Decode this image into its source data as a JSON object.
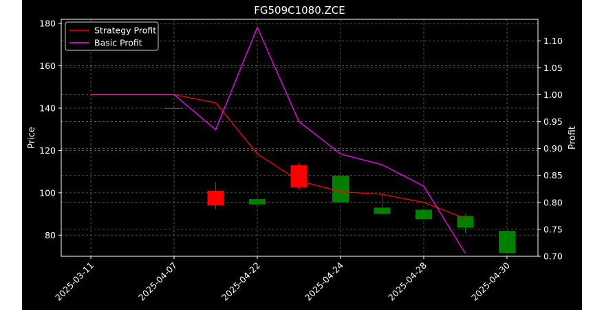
{
  "chart_data": {
    "type": "candlestick",
    "title": "FG509C1080.ZCE",
    "ylabel_left": "Price",
    "ylabel_right": "Profit",
    "ylim_left": [
      70,
      182
    ],
    "ylim_right": [
      0.7,
      1.14
    ],
    "yticks_left": [
      80,
      100,
      120,
      140,
      160,
      180
    ],
    "yticks_right": [
      0.7,
      0.75,
      0.8,
      0.85,
      0.9,
      0.95,
      1.0,
      1.05,
      1.1
    ],
    "ytick_labels_right": [
      "0.70",
      "0.75",
      "0.80",
      "0.85",
      "0.90",
      "0.95",
      "1.00",
      "1.05",
      "1.10"
    ],
    "x_tick_labels": [
      "2025-03-11",
      "2025-04-07",
      "2025-04-22",
      "2025-04-24",
      "2025-04-28",
      "2025-04-30"
    ],
    "grid": true,
    "legend_position": "upper-left",
    "candles": [
      {
        "open": 140,
        "close": 140,
        "high": 140,
        "low": 140,
        "color": "#ff0000"
      },
      {
        "open": 94,
        "close": 101,
        "high": 105,
        "low": 92,
        "color": "#ff0000"
      },
      {
        "open": 97,
        "close": 94.5,
        "high": 98,
        "low": 94,
        "color": "#008000"
      },
      {
        "open": 102.5,
        "close": 113,
        "high": 114,
        "low": 101.5,
        "color": "#ff0000"
      },
      {
        "open": 108,
        "close": 95.5,
        "high": 108.5,
        "low": 95,
        "color": "#008000"
      },
      {
        "open": 93,
        "close": 90,
        "high": 100,
        "low": 89.5,
        "color": "#008000"
      },
      {
        "open": 92,
        "close": 87.5,
        "high": 92.5,
        "low": 87,
        "color": "#008000"
      },
      {
        "open": 89,
        "close": 83.5,
        "high": 90,
        "low": 81,
        "color": "#008000"
      },
      {
        "open": 82,
        "close": 71.5,
        "high": 82.5,
        "low": 71,
        "color": "#008000"
      }
    ],
    "series": [
      {
        "name": "Strategy Profit",
        "color": "#ff0000",
        "values": [
          1.0,
          1.0,
          1.0,
          0.985,
          0.89,
          0.84,
          0.82,
          0.815,
          0.8,
          0.77
        ]
      },
      {
        "name": "Basic Profit",
        "color": "#ff00ff",
        "values": [
          1.0,
          1.0,
          1.0,
          0.935,
          1.125,
          0.95,
          0.89,
          0.87,
          0.83,
          0.705
        ]
      }
    ]
  }
}
